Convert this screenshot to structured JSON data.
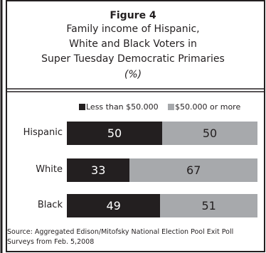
{
  "header": {
    "figure_label": "Figure 4",
    "title_lines": [
      "Family income of Hispanic,",
      "White and Black Voters in",
      "Super Tuesday Democratic Primaries"
    ],
    "unit": "(%)"
  },
  "colors": {
    "series_dark": "#231f20",
    "series_light": "#a7a9ac",
    "frame": "#231f20"
  },
  "chart_data": {
    "type": "bar",
    "orientation": "horizontal",
    "stacked": true,
    "title": "Family income of Hispanic, White and Black Voters in Super Tuesday Democratic Primaries",
    "categories": [
      "Hispanic",
      "White",
      "Black"
    ],
    "series": [
      {
        "name": "Less than $50.000",
        "values": [
          50,
          33,
          49
        ]
      },
      {
        "name": "$50.000 or more",
        "values": [
          50,
          67,
          51
        ]
      }
    ],
    "xlim": [
      0,
      100
    ],
    "legend_position": "top",
    "grid": false
  },
  "source": {
    "lines": [
      "Source: Aggregated Edison/Mitofsky National Election Pool Exit Poll",
      "Surveys from Feb. 5,2008"
    ]
  }
}
